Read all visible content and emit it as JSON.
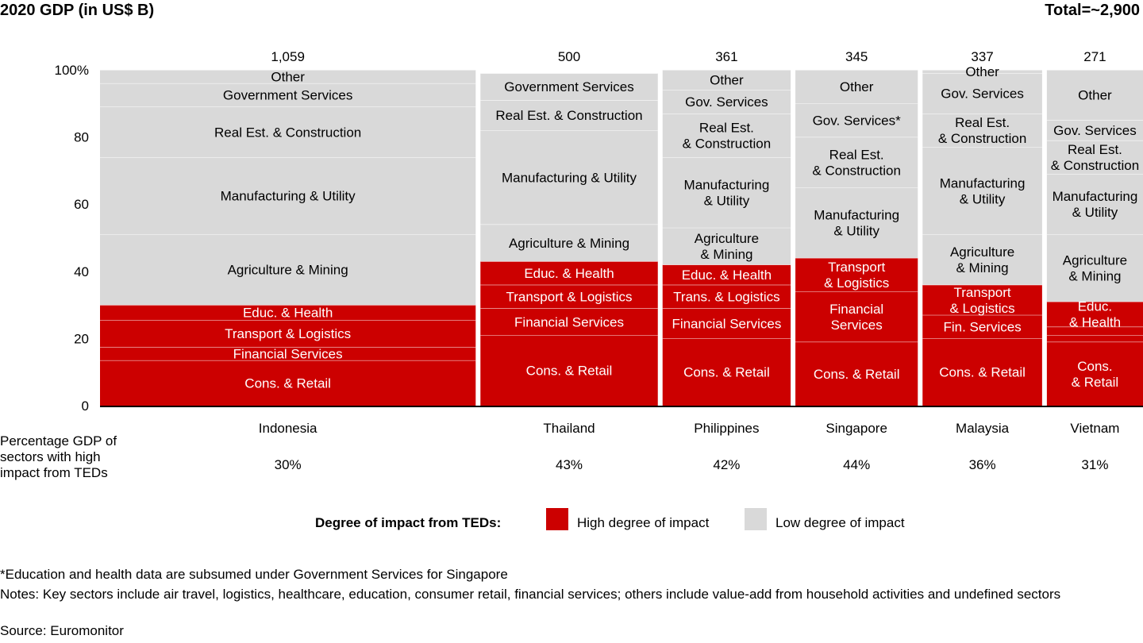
{
  "header": {
    "title": "2020 GDP (in US$ B)",
    "total": "Total=~2,900"
  },
  "side_label": "Percentage GDP of sectors with high impact from TEDs",
  "legend": {
    "title": "Degree of impact from TEDs:",
    "high": "High degree of impact",
    "low": "Low degree of impact"
  },
  "colors": {
    "high": "#cc0000",
    "low": "#d9d9d9",
    "high_text": "#ffffff",
    "low_text": "#000000"
  },
  "footnotes": {
    "asterisk": "*Education and health data are subsumed under Government Services for Singapore",
    "notes": "Notes: Key sectors include air travel, logistics, healthcare, education, consumer retail, financial services; others include value-add from household activities and undefined sectors",
    "source": "Source: Euromonitor"
  },
  "chart_data": {
    "type": "bar",
    "subtype": "marimekko",
    "yticks": [
      "100%",
      "80",
      "60",
      "40",
      "20",
      "0"
    ],
    "ylim": [
      0,
      100
    ],
    "countries": [
      {
        "name": "Indonesia",
        "gdp": 1059,
        "gdp_label": "1,059",
        "high_impact_pct": "30%",
        "segments": [
          {
            "label": "Cons. & Retail",
            "value": 13.5,
            "impact": "high"
          },
          {
            "label": "Financial Services",
            "value": 4,
            "impact": "high"
          },
          {
            "label": "Transport & Logistics",
            "value": 8,
            "impact": "high"
          },
          {
            "label": "Educ. & Health",
            "value": 4.5,
            "impact": "high"
          },
          {
            "label": "Agriculture & Mining",
            "value": 21,
            "impact": "low"
          },
          {
            "label": "Manufacturing & Utility",
            "value": 23,
            "impact": "low"
          },
          {
            "label": "Real Est. & Construction",
            "value": 15,
            "impact": "low"
          },
          {
            "label": "Government Services",
            "value": 7,
            "impact": "low"
          },
          {
            "label": "Other",
            "value": 4,
            "impact": "low"
          }
        ]
      },
      {
        "name": "Thailand",
        "gdp": 500,
        "gdp_label": "500",
        "high_impact_pct": "43%",
        "segments": [
          {
            "label": "Cons. & Retail",
            "value": 21,
            "impact": "high"
          },
          {
            "label": "Financial Services",
            "value": 8,
            "impact": "high"
          },
          {
            "label": "Transport & Logistics",
            "value": 7,
            "impact": "high"
          },
          {
            "label": "Educ. & Health",
            "value": 7,
            "impact": "high"
          },
          {
            "label": "Agriculture & Mining",
            "value": 11,
            "impact": "low"
          },
          {
            "label": "Manufacturing & Utility",
            "value": 28,
            "impact": "low"
          },
          {
            "label": "Real Est. & Construction",
            "value": 9,
            "impact": "low"
          },
          {
            "label": "Government Services",
            "value": 8,
            "impact": "low"
          }
        ]
      },
      {
        "name": "Philippines",
        "gdp": 361,
        "gdp_label": "361",
        "high_impact_pct": "42%",
        "segments": [
          {
            "label": "Cons. & Retail",
            "value": 20,
            "impact": "high"
          },
          {
            "label": "Financial Services",
            "value": 9,
            "impact": "high"
          },
          {
            "label": "Trans. & Logistics",
            "value": 7,
            "impact": "high"
          },
          {
            "label": "Educ. & Health",
            "value": 6,
            "impact": "high"
          },
          {
            "label": "Agriculture & Mining",
            "value": 11,
            "impact": "low"
          },
          {
            "label": "Manufacturing & Utility",
            "value": 21,
            "impact": "low"
          },
          {
            "label": "Real Est. & Construction",
            "value": 13,
            "impact": "low"
          },
          {
            "label": "Gov. Services",
            "value": 7,
            "impact": "low"
          },
          {
            "label": "Other",
            "value": 6,
            "impact": "low"
          }
        ]
      },
      {
        "name": "Singapore",
        "gdp": 345,
        "gdp_label": "345",
        "high_impact_pct": "44%",
        "segments": [
          {
            "label": "Cons. & Retail",
            "value": 19,
            "impact": "high"
          },
          {
            "label": "Financial Services",
            "value": 15,
            "impact": "high"
          },
          {
            "label": "Transport & Logistics",
            "value": 10,
            "impact": "high"
          },
          {
            "label": "Manufacturing & Utility",
            "value": 21,
            "impact": "low"
          },
          {
            "label": "Real Est. & Construction",
            "value": 15,
            "impact": "low"
          },
          {
            "label": "Gov. Services*",
            "value": 10,
            "impact": "low"
          },
          {
            "label": "Other",
            "value": 10,
            "impact": "low"
          }
        ]
      },
      {
        "name": "Malaysia",
        "gdp": 337,
        "gdp_label": "337",
        "high_impact_pct": "36%",
        "segments": [
          {
            "label": "Cons. & Retail",
            "value": 20,
            "impact": "high"
          },
          {
            "label": "Fin. Services",
            "value": 7,
            "impact": "high"
          },
          {
            "label": "Transport & Logistics",
            "value": 9,
            "impact": "high"
          },
          {
            "label": "Agriculture & Mining",
            "value": 15,
            "impact": "low"
          },
          {
            "label": "Manufacturing & Utility",
            "value": 26,
            "impact": "low"
          },
          {
            "label": "Real Est. & Construction",
            "value": 10,
            "impact": "low"
          },
          {
            "label": "Gov. Services",
            "value": 12,
            "impact": "low"
          },
          {
            "label": "Other",
            "value": 1,
            "impact": "low"
          }
        ]
      },
      {
        "name": "Vietnam",
        "gdp": 271,
        "gdp_label": "271",
        "high_impact_pct": "31%",
        "segments": [
          {
            "label": "Cons. & Retail",
            "value": 19,
            "impact": "high"
          },
          {
            "label": "",
            "value": 2,
            "impact": "high"
          },
          {
            "label": "",
            "value": 2.5,
            "impact": "high"
          },
          {
            "label": "Educ. & Health",
            "value": 7.5,
            "impact": "high"
          },
          {
            "label": "Agriculture & Mining",
            "value": 20,
            "impact": "low"
          },
          {
            "label": "Manufacturing & Utility",
            "value": 18,
            "impact": "low"
          },
          {
            "label": "Real Est. & Construction",
            "value": 10,
            "impact": "low"
          },
          {
            "label": "Gov. Services",
            "value": 6,
            "impact": "low"
          },
          {
            "label": "Other",
            "value": 15,
            "impact": "low"
          }
        ]
      }
    ]
  }
}
